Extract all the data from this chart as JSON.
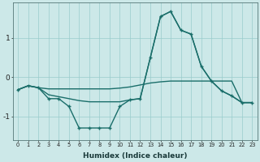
{
  "xlabel": "Humidex (Indice chaleur)",
  "background_color": "#cce8e8",
  "grid_color": "#99cccc",
  "line_color": "#1a6e6a",
  "x_values": [
    0,
    1,
    2,
    3,
    4,
    5,
    6,
    7,
    8,
    9,
    10,
    11,
    12,
    13,
    14,
    15,
    16,
    17,
    18,
    19,
    20,
    21,
    22,
    23
  ],
  "flat_y": [
    -0.32,
    -0.22,
    -0.27,
    -0.3,
    -0.3,
    -0.3,
    -0.3,
    -0.3,
    -0.3,
    -0.3,
    -0.28,
    -0.25,
    -0.2,
    -0.15,
    -0.12,
    -0.1,
    -0.1,
    -0.1,
    -0.1,
    -0.1,
    -0.1,
    -0.1,
    -0.65,
    -0.65
  ],
  "main_y": [
    -0.32,
    -0.22,
    -0.27,
    -0.55,
    -0.55,
    -0.75,
    -1.3,
    -1.3,
    -1.3,
    -1.3,
    -0.75,
    -0.58,
    -0.55,
    0.5,
    1.55,
    1.68,
    1.2,
    1.1,
    0.28,
    -0.1,
    -0.35,
    -0.48,
    -0.65,
    -0.65
  ],
  "diag_y": [
    -0.32,
    -0.22,
    -0.27,
    -0.45,
    -0.5,
    -0.55,
    -0.6,
    -0.63,
    -0.63,
    -0.63,
    -0.63,
    -0.58,
    -0.55,
    0.5,
    1.55,
    1.68,
    1.2,
    1.1,
    0.28,
    -0.1,
    -0.35,
    -0.48,
    -0.65,
    -0.65
  ],
  "ylim": [
    -1.6,
    1.9
  ],
  "yticks": [
    -1,
    0,
    1
  ],
  "xlim": [
    -0.5,
    23.5
  ],
  "figsize": [
    3.2,
    2.0
  ],
  "dpi": 100
}
